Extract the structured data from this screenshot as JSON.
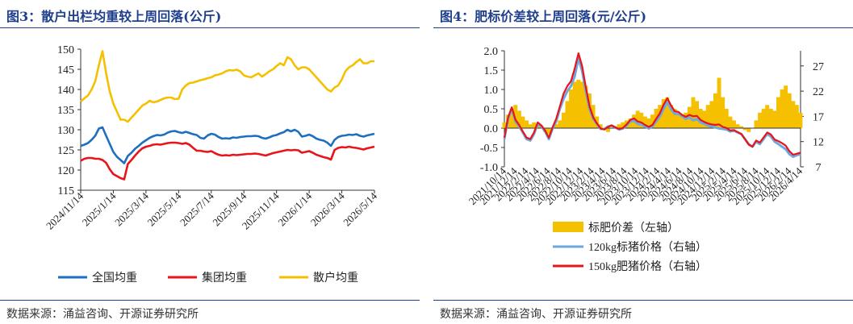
{
  "left": {
    "title": "图3：散户出栏均重较上周回落(公斤)",
    "source": "数据来源：涌益咨询、开源证券研究所"
  },
  "right": {
    "title": "图4：肥标价差较上周回落(元/公斤)",
    "source": "数据来源：涌益咨询、开源证券研究所"
  },
  "colors": {
    "title_blue": "#1f3f8c",
    "national": "#1f6fbf",
    "group": "#e8141a",
    "retail": "#f5c000",
    "spread_fill": "#f5c000",
    "price120": "#6fa8dc",
    "price150": "#e8141a"
  },
  "chart_data": [
    {
      "type": "line",
      "ylim": [
        115,
        150
      ],
      "yticks": [
        115,
        120,
        125,
        130,
        135,
        140,
        145,
        150
      ],
      "grid": false,
      "legend_position": "bottom",
      "x_tick_labels": [
        "2024/11/14",
        "2025/1/14",
        "2025/3/14",
        "2025/5/14",
        "2025/7/14",
        "2025/9/14",
        "2025/11/14",
        "2026/1/14",
        "2026/3/14",
        "2026/5/14"
      ],
      "series": [
        {
          "name": "全国均重",
          "color": "#1f6fbf",
          "values": [
            126.0,
            126.3,
            126.7,
            127.5,
            128.5,
            130.3,
            130.6,
            128.5,
            126.5,
            124.5,
            123.3,
            122.5,
            121.7,
            123.5,
            124.3,
            125.3,
            126.0,
            126.8,
            127.4,
            128.0,
            128.4,
            128.7,
            128.6,
            128.8,
            129.3,
            129.6,
            129.7,
            129.4,
            129.2,
            129.5,
            129.2,
            128.9,
            128.7,
            128.0,
            127.8,
            128.6,
            129.0,
            128.8,
            128.2,
            127.8,
            127.9,
            127.8,
            128.1,
            128.0,
            128.2,
            128.3,
            128.4,
            128.4,
            128.5,
            128.4,
            128.0,
            127.8,
            128.1,
            128.5,
            128.7,
            129.1,
            129.4,
            130.0,
            129.6,
            130.0,
            129.5,
            128.3,
            128.5,
            128.8,
            128.4,
            127.8,
            127.5,
            127.3,
            126.8,
            126.0,
            127.5,
            128.2,
            128.5,
            128.6,
            128.8,
            128.7,
            128.9,
            128.5,
            128.3,
            128.6,
            128.8,
            129.0
          ]
        },
        {
          "name": "集团均重",
          "color": "#e8141a",
          "values": [
            122.3,
            122.8,
            123.0,
            123.0,
            122.8,
            122.8,
            122.5,
            121.8,
            120.2,
            119.0,
            118.5,
            118.0,
            117.7,
            121.5,
            122.5,
            123.6,
            124.6,
            125.4,
            125.8,
            126.0,
            126.3,
            126.4,
            126.3,
            126.5,
            126.7,
            126.8,
            126.8,
            126.7,
            126.5,
            126.7,
            126.3,
            125.5,
            124.8,
            124.8,
            124.6,
            124.5,
            124.7,
            124.2,
            123.8,
            123.6,
            123.7,
            123.6,
            123.8,
            123.7,
            123.8,
            123.9,
            124.0,
            124.0,
            124.1,
            124.0,
            123.8,
            123.6,
            123.9,
            124.2,
            124.4,
            124.6,
            124.8,
            125.0,
            124.9,
            125.0,
            124.9,
            124.3,
            124.5,
            124.7,
            124.3,
            123.8,
            123.5,
            123.2,
            123.0,
            122.6,
            125.0,
            125.5,
            125.7,
            125.6,
            125.8,
            125.6,
            125.5,
            125.3,
            125.1,
            125.4,
            125.6,
            125.8
          ]
        },
        {
          "name": "散户均重",
          "color": "#f5c000",
          "values": [
            137.0,
            137.8,
            138.5,
            140.0,
            142.0,
            146.0,
            149.5,
            144.0,
            139.5,
            136.5,
            134.5,
            132.5,
            132.5,
            132.0,
            133.0,
            134.0,
            135.0,
            136.0,
            136.5,
            137.2,
            136.8,
            137.0,
            137.4,
            137.8,
            138.0,
            138.0,
            137.6,
            137.7,
            140.0,
            141.0,
            141.6,
            141.7,
            142.0,
            142.3,
            142.5,
            142.8,
            143.0,
            143.5,
            143.7,
            144.0,
            144.5,
            144.8,
            144.7,
            144.9,
            144.5,
            143.5,
            143.2,
            143.0,
            143.5,
            144.0,
            143.2,
            143.8,
            144.5,
            145.0,
            145.8,
            146.5,
            146.0,
            148.0,
            147.5,
            146.0,
            145.0,
            145.5,
            145.5,
            145.0,
            144.0,
            143.0,
            142.0,
            141.0,
            140.0,
            139.5,
            140.5,
            141.0,
            142.5,
            144.5,
            145.5,
            146.0,
            146.8,
            147.5,
            146.5,
            146.5,
            147.0,
            147.0
          ]
        }
      ]
    },
    {
      "type": "area+line",
      "ylim_left": [
        -1.0,
        2.0
      ],
      "yticks_left": [
        -1.0,
        -0.5,
        0.0,
        0.5,
        1.0,
        1.5,
        2.0
      ],
      "ylim_right": [
        7,
        30
      ],
      "yticks_right": [
        7,
        12,
        17,
        22,
        27
      ],
      "grid": false,
      "legend_position": "bottom",
      "x_tick_labels": [
        "2021/10/14",
        "2021/12/14",
        "2022/2/14",
        "2022/4/14",
        "2022/6/14",
        "2022/8/14",
        "2022/10/14",
        "2022/12/14",
        "2023/2/14",
        "2023/4/14",
        "2023/6/14",
        "2023/8/14",
        "2023/10/14",
        "2023/12/14",
        "2024/2/14",
        "2024/4/14",
        "2024/6/14",
        "2024/8/14",
        "2024/10/14",
        "2024/12/14",
        "2025/2/14",
        "2025/4/14",
        "2025/6/14",
        "2025/8/14",
        "2025/10/14",
        "2025/12/14",
        "2026/2/14",
        "2026/4/14"
      ],
      "series": [
        {
          "name": "标肥价差（左轴）",
          "axis": "left",
          "kind": "area",
          "color": "#f5c000",
          "values": [
            0.15,
            0.35,
            0.5,
            0.6,
            0.45,
            0.3,
            0.2,
            0.1,
            0.15,
            0.1,
            0.05,
            -0.1,
            -0.15,
            0.0,
            0.1,
            0.2,
            0.4,
            0.7,
            1.0,
            1.2,
            1.25,
            1.2,
            1.1,
            0.9,
            0.6,
            0.3,
            0.1,
            -0.05,
            -0.1,
            0.0,
            0.05,
            0.1,
            0.15,
            0.2,
            0.25,
            0.35,
            0.45,
            0.4,
            0.3,
            0.25,
            0.35,
            0.5,
            0.6,
            0.75,
            0.8,
            0.6,
            0.5,
            0.4,
            0.3,
            0.4,
            0.55,
            0.8,
            0.7,
            0.5,
            0.45,
            0.6,
            0.7,
            0.9,
            1.3,
            0.8,
            0.5,
            0.3,
            0.2,
            0.1,
            0.05,
            -0.05,
            -0.1,
            0.0,
            0.2,
            0.4,
            0.5,
            0.6,
            0.5,
            0.45,
            0.8,
            1.0,
            1.1,
            0.9,
            0.7,
            0.6,
            0.4
          ]
        },
        {
          "name": "120kg标猪价格（右轴）",
          "axis": "right",
          "kind": "line",
          "color": "#6fa8dc",
          "values": [
            12.5,
            16.5,
            18.5,
            16.0,
            15.0,
            13.8,
            12.5,
            12.2,
            13.5,
            15.5,
            15.0,
            14.0,
            12.5,
            14.5,
            16.0,
            18.5,
            20.5,
            22.0,
            23.0,
            25.0,
            28.5,
            26.0,
            22.0,
            18.5,
            16.5,
            15.5,
            14.5,
            14.5,
            15.0,
            15.2,
            14.8,
            14.4,
            14.6,
            15.2,
            16.0,
            16.2,
            15.5,
            15.4,
            15.0,
            14.6,
            15.0,
            16.0,
            17.0,
            18.5,
            19.8,
            18.5,
            17.5,
            17.5,
            17.0,
            16.5,
            16.8,
            16.2,
            16.5,
            15.8,
            15.5,
            15.2,
            15.0,
            14.8,
            14.6,
            14.5,
            14.4,
            14.0,
            14.2,
            13.8,
            13.5,
            12.5,
            11.5,
            11.0,
            12.0,
            11.5,
            12.5,
            13.5,
            13.0,
            12.0,
            11.5,
            11.0,
            10.5,
            9.5,
            9.0,
            9.3,
            9.5
          ]
        },
        {
          "name": "150kg肥猪价格（右轴）",
          "axis": "right",
          "kind": "line",
          "color": "#e8141a",
          "values": [
            12.8,
            16.8,
            18.8,
            16.3,
            15.3,
            14.0,
            12.8,
            12.5,
            13.8,
            15.8,
            15.2,
            14.2,
            12.8,
            14.8,
            16.5,
            19.0,
            21.5,
            23.0,
            24.0,
            26.5,
            29.5,
            27.0,
            22.8,
            19.0,
            16.8,
            15.6,
            14.6,
            14.4,
            14.9,
            15.2,
            14.8,
            14.5,
            14.7,
            15.4,
            16.3,
            16.6,
            16.0,
            15.8,
            15.3,
            14.9,
            15.3,
            16.5,
            17.6,
            19.3,
            20.6,
            19.2,
            18.0,
            17.9,
            17.3,
            16.9,
            17.3,
            17.0,
            17.1,
            16.3,
            15.9,
            15.6,
            15.4,
            15.3,
            15.4,
            14.9,
            14.7,
            14.2,
            14.3,
            13.9,
            13.5,
            12.5,
            11.4,
            11.0,
            12.2,
            11.8,
            12.8,
            13.8,
            13.4,
            12.4,
            12.1,
            11.7,
            11.2,
            10.1,
            9.4,
            9.6,
            9.8
          ]
        }
      ]
    }
  ]
}
